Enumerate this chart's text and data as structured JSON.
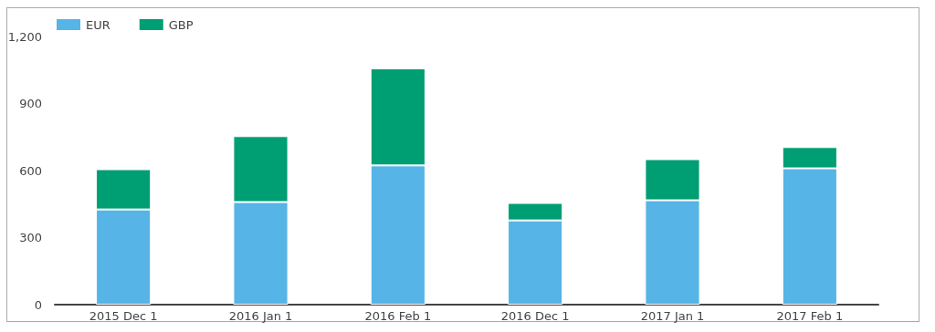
{
  "chart_data": {
    "type": "bar",
    "stacked": true,
    "categories": [
      "2015 Dec 1",
      "2016 Jan 1",
      "2016 Feb 1",
      "2016 Dec 1",
      "2017 Jan 1",
      "2017 Feb 1"
    ],
    "series": [
      {
        "name": "EUR",
        "color": "#56b4e6",
        "values": [
          426,
          459,
          623,
          377,
          467,
          610
        ]
      },
      {
        "name": "GBP",
        "color": "#009e73",
        "values": [
          180,
          295,
          434,
          78,
          184,
          95
        ]
      }
    ],
    "ylim": [
      0,
      1200
    ],
    "yticks": [
      0,
      {
        "value": 300,
        "label": "300"
      },
      {
        "value": 600,
        "label": "600"
      },
      {
        "value": 900,
        "label": "900"
      },
      {
        "value": 1200,
        "label": "1,200"
      }
    ],
    "grid": false,
    "legend": "top left"
  }
}
